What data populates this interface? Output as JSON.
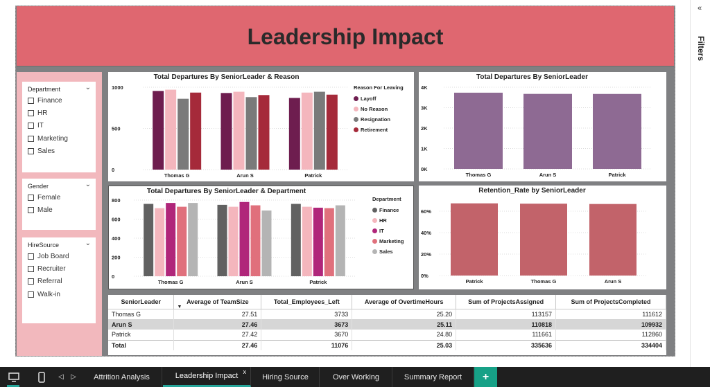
{
  "header": {
    "title": "Leadership Impact"
  },
  "slicers": [
    {
      "title": "Department",
      "options": [
        "Finance",
        "HR",
        "IT",
        "Marketing",
        "Sales"
      ]
    },
    {
      "title": "Gender",
      "options": [
        "Female",
        "Male"
      ]
    },
    {
      "title": "HireSource",
      "options": [
        "Job Board",
        "Recruiter",
        "Referral",
        "Walk-in"
      ]
    }
  ],
  "filters_pane": {
    "label": "Filters",
    "collapse_icon": "double-chevron-left-icon"
  },
  "chart_data": [
    {
      "type": "bar",
      "title": "Total Departures By SeniorLeader & Reason",
      "categories": [
        "Thomas G",
        "Arun S",
        "Patrick"
      ],
      "legend_title": "Reason For Leaving",
      "series": [
        {
          "name": "Layoff",
          "values": [
            955,
            930,
            870
          ]
        },
        {
          "name": "No Reason",
          "values": [
            970,
            945,
            935
          ]
        },
        {
          "name": "Resignation",
          "values": [
            860,
            880,
            945
          ]
        },
        {
          "name": "Retirement",
          "values": [
            935,
            905,
            910
          ]
        }
      ],
      "colors": [
        "#6e1d4f",
        "#f4b6bd",
        "#7a7a7a",
        "#a52a3a"
      ],
      "y_ticks": [
        "0",
        "500",
        "1000"
      ],
      "ylim": [
        0,
        1000
      ]
    },
    {
      "type": "bar",
      "title": "Total Departures By SeniorLeader",
      "categories": [
        "Thomas G",
        "Arun S",
        "Patrick"
      ],
      "values": [
        3733,
        3673,
        3670
      ],
      "color": "#8e6a93",
      "y_ticks": [
        "0K",
        "1K",
        "2K",
        "3K",
        "4K"
      ],
      "ylim": [
        0,
        4000
      ]
    },
    {
      "type": "bar",
      "title": "Total Departures By SeniorLeader & Department",
      "categories": [
        "Thomas G",
        "Arun S",
        "Patrick"
      ],
      "legend_title": "Department",
      "series": [
        {
          "name": "Finance",
          "values": [
            760,
            750,
            760
          ]
        },
        {
          "name": "HR",
          "values": [
            715,
            730,
            730
          ]
        },
        {
          "name": "IT",
          "values": [
            770,
            780,
            720
          ]
        },
        {
          "name": "Marketing",
          "values": [
            730,
            745,
            715
          ]
        },
        {
          "name": "Sales",
          "values": [
            770,
            690,
            745
          ]
        }
      ],
      "colors": [
        "#616161",
        "#f4b6bd",
        "#b0267a",
        "#e0707c",
        "#b4b4b4"
      ],
      "y_ticks": [
        "0",
        "200",
        "400",
        "600",
        "800"
      ],
      "ylim": [
        0,
        800
      ]
    },
    {
      "type": "bar",
      "title": "Retention_Rate by SeniorLeader",
      "categories": [
        "Patrick",
        "Thomas G",
        "Arun S"
      ],
      "values": [
        67.3,
        67.0,
        66.7
      ],
      "color": "#c2636a",
      "y_ticks": [
        "0%",
        "20%",
        "40%",
        "60%"
      ],
      "ylim": [
        0,
        71
      ]
    }
  ],
  "table": {
    "columns": [
      "SeniorLeader",
      "Average of TeamSize",
      "Total_Employees_Left",
      "Average of OvertimeHours",
      "Sum of ProjectsAssigned",
      "Sum of ProjectsCompleted"
    ],
    "rows": [
      [
        "Thomas G",
        "27.51",
        "3733",
        "25.20",
        "113157",
        "111612"
      ],
      [
        "Arun S",
        "27.46",
        "3673",
        "25.11",
        "110818",
        "109932"
      ],
      [
        "Patrick",
        "27.42",
        "3670",
        "24.80",
        "111661",
        "112860"
      ]
    ],
    "total": [
      "Total",
      "27.46",
      "11076",
      "25.03",
      "335636",
      "334404"
    ]
  },
  "tabs": [
    {
      "label": "Attrition Analysis"
    },
    {
      "label": "Leadership Impact",
      "close": "x"
    },
    {
      "label": "Hiring Source"
    },
    {
      "label": "Over Working"
    },
    {
      "label": "Summary Report"
    }
  ],
  "add_tab": "+"
}
